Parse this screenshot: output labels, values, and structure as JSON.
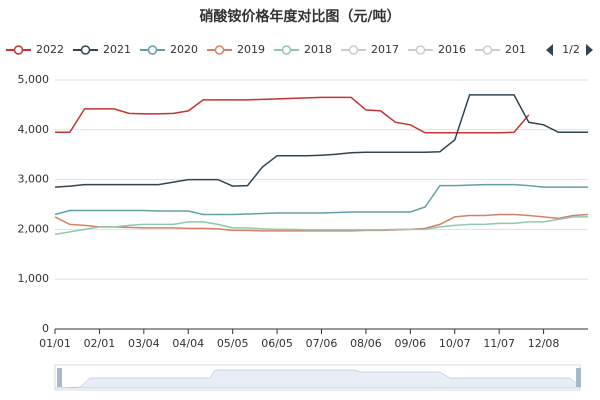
{
  "chart_data": {
    "type": "line",
    "title": "硝酸铵价格年度对比图（元/吨）",
    "categories": [
      "01/01",
      null,
      null,
      "02/01",
      null,
      null,
      "03/04",
      null,
      null,
      "04/04",
      null,
      null,
      "05/05",
      null,
      null,
      "06/05",
      null,
      null,
      "07/06",
      null,
      null,
      "08/06",
      null,
      null,
      "09/06",
      null,
      null,
      "10/07",
      null,
      null,
      "11/07",
      null,
      null,
      "12/08",
      null,
      null,
      null
    ],
    "series": [
      {
        "name": "2022",
        "color": "#c23531",
        "values": [
          3950,
          3950,
          4420,
          4420,
          4420,
          4330,
          4320,
          4320,
          4330,
          4380,
          4600,
          4600,
          4600,
          4600,
          4610,
          4620,
          4630,
          4640,
          4650,
          4650,
          4650,
          4400,
          4380,
          4150,
          4100,
          3940,
          3940,
          3940,
          3940,
          3940,
          3940,
          3950,
          4300,
          null,
          null,
          null,
          null
        ]
      },
      {
        "name": "2021",
        "color": "#2f4554",
        "values": [
          2850,
          2870,
          2900,
          2900,
          2900,
          2900,
          2900,
          2900,
          2950,
          3000,
          3000,
          3000,
          2870,
          2880,
          3250,
          3480,
          3480,
          3480,
          3490,
          3510,
          3540,
          3550,
          3550,
          3550,
          3550,
          3550,
          3560,
          3800,
          4700,
          4700,
          4700,
          4700,
          4150,
          4100,
          3950,
          3950,
          3950
        ]
      },
      {
        "name": "2020",
        "color": "#61a0a8",
        "values": [
          2300,
          2380,
          2380,
          2380,
          2380,
          2380,
          2380,
          2370,
          2370,
          2370,
          2300,
          2300,
          2300,
          2310,
          2320,
          2330,
          2330,
          2330,
          2330,
          2340,
          2350,
          2350,
          2350,
          2350,
          2350,
          2450,
          2880,
          2880,
          2890,
          2900,
          2900,
          2900,
          2880,
          2850,
          2850,
          2850,
          2850
        ]
      },
      {
        "name": "2019",
        "color": "#d48265",
        "values": [
          2250,
          2100,
          2080,
          2050,
          2050,
          2040,
          2030,
          2030,
          2030,
          2020,
          2020,
          2010,
          1980,
          1980,
          1970,
          1970,
          1970,
          1970,
          1970,
          1970,
          1970,
          1980,
          1980,
          1990,
          2000,
          2020,
          2100,
          2250,
          2280,
          2280,
          2300,
          2300,
          2280,
          2250,
          2220,
          2280,
          2300
        ]
      },
      {
        "name": "2018",
        "color": "#91c7ae",
        "values": [
          1900,
          1950,
          2000,
          2050,
          2050,
          2080,
          2100,
          2100,
          2100,
          2150,
          2150,
          2100,
          2030,
          2030,
          2010,
          2000,
          2000,
          1990,
          1990,
          1990,
          1990,
          1990,
          1990,
          2000,
          2000,
          2000,
          2050,
          2080,
          2100,
          2100,
          2120,
          2120,
          2150,
          2150,
          2200,
          2250,
          2250
        ]
      }
    ],
    "inactive_legend": [
      "2017",
      "2016",
      "201"
    ],
    "legend_page": "1/2",
    "ylim": [
      0,
      5000
    ],
    "yticks": [
      0,
      {
        "value": 1000,
        "label": "1,000"
      },
      {
        "value": 2000,
        "label": "2,000"
      },
      {
        "value": 3000,
        "label": "3,000"
      },
      {
        "value": 4000,
        "label": "4,000"
      },
      {
        "value": 5000,
        "label": "5,000"
      }
    ],
    "grid": true
  }
}
